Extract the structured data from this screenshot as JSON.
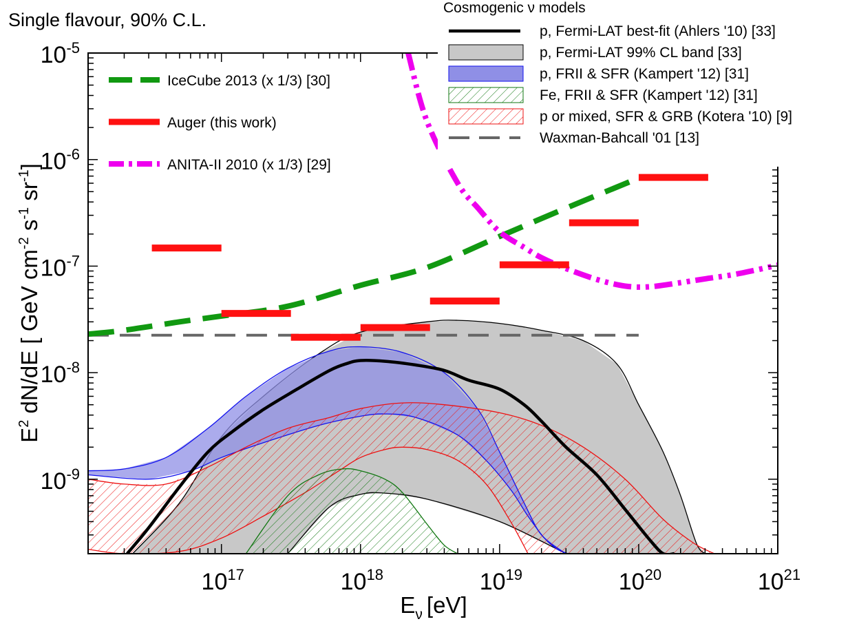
{
  "chart_data": {
    "type": "line",
    "title": "Single flavour, 90% C.L.",
    "xlabel": "E",
    "xlabel_sub": "ν",
    "xlabel_unit": "[eV]",
    "ylabel": "E",
    "ylabel_sup": "2",
    "ylabel_rest": " dN/dE  [ GeV cm",
    "ylabel_sup2": "-2",
    "ylabel_rest2": " s",
    "ylabel_sup3": "-1",
    "ylabel_rest3": " sr",
    "ylabel_sup4": "-1",
    "ylabel_end": "]",
    "x_scale": "log",
    "y_scale": "log",
    "xlim": [
      1.1e+16,
      1e+21
    ],
    "ylim": [
      2e-10,
      1e-05
    ],
    "x_ticks": [
      {
        "value": 1e+17,
        "base": "10",
        "exp": "17"
      },
      {
        "value": 1e+18,
        "base": "10",
        "exp": "18"
      },
      {
        "value": 1e+19,
        "base": "10",
        "exp": "19"
      },
      {
        "value": 1e+20,
        "base": "10",
        "exp": "20"
      },
      {
        "value": 1e+21,
        "base": "10",
        "exp": "21"
      }
    ],
    "y_ticks": [
      {
        "value": 1e-09,
        "base": "10",
        "exp": "-9"
      },
      {
        "value": 1e-08,
        "base": "10",
        "exp": "-8"
      },
      {
        "value": 1e-07,
        "base": "10",
        "exp": "-7"
      },
      {
        "value": 1e-06,
        "base": "10",
        "exp": "-6"
      },
      {
        "value": 1e-05,
        "base": "10",
        "exp": "-5"
      }
    ],
    "legend_left": {
      "placement": "top-left",
      "entries": [
        {
          "label": "IceCube 2013 (x 1/3) [30]",
          "style": "dashed",
          "color": "#119911"
        },
        {
          "label": "Auger (this work)",
          "style": "solid",
          "color": "#ff1111"
        },
        {
          "label": "ANITA-II 2010 (x 1/3) [29]",
          "style": "dashdot",
          "color": "#ee00ee"
        }
      ]
    },
    "legend_right": {
      "placement": "top-right",
      "title": "Cosmogenic  ν models",
      "entries": [
        {
          "label": "p, Fermi-LAT best-fit (Ahlers '10) [33]",
          "style": "line",
          "color": "#000000"
        },
        {
          "label": "p, Fermi-LAT 99% CL band [33]",
          "style": "band",
          "color": "#c8c8c8",
          "edge": "#000000"
        },
        {
          "label": "p, FRII & SFR (Kampert '12) [31]",
          "style": "band",
          "color": "#8f8fe6",
          "edge": "#1111ee"
        },
        {
          "label": "Fe, FRII & SFR (Kampert '12) [31]",
          "style": "hatch",
          "color": "#117711"
        },
        {
          "label": "p or mixed, SFR & GRB (Kotera '10) [9]",
          "style": "hatch",
          "color": "#ee1111"
        },
        {
          "label": "Waxman-Bahcall '01 [13]",
          "style": "dashed",
          "color": "#666666"
        }
      ]
    },
    "series": [
      {
        "kind": "band",
        "color": "#c8c8c8",
        "edge": "#000000",
        "upper": {
          "x": [
            2.3e+16,
            5e+16,
            1e+17,
            2e+17,
            5e+17,
            1e+18,
            3e+18,
            5e+18,
            1e+19,
            2e+19,
            4e+19,
            7e+19,
            1e+20,
            1.5e+20,
            2e+20,
            2.6e+20,
            3e+20
          ],
          "y": [
            2e-10,
            6e-10,
            2.5e-09,
            6e-09,
            1.5e-08,
            2.4e-08,
            3e-08,
            3.1e-08,
            2.9e-08,
            2.5e-08,
            2e-08,
            1.2e-08,
            5e-09,
            1.8e-09,
            7e-10,
            2.5e-10,
            2e-10
          ]
        },
        "lower": {
          "x": [
            3e+17,
            6e+17,
            1e+18,
            1.5e+18,
            3e+18,
            1e+19,
            3e+19
          ],
          "y": [
            2e-10,
            5.5e-10,
            7.2e-10,
            7.4e-10,
            6.5e-10,
            4e-10,
            2e-10
          ]
        }
      },
      {
        "kind": "band",
        "color": "#8f8fe6",
        "edge": "#1111ee",
        "opacity": 0.75,
        "upper": {
          "x": [
            1.1e+16,
            2e+16,
            4e+16,
            8e+16,
            1.5e+17,
            3e+17,
            6e+17,
            1e+18,
            2e+18,
            4e+18,
            7e+18,
            1e+19,
            1.5e+19,
            2e+19,
            3e+19
          ],
          "y": [
            1.2e-09,
            1.25e-09,
            1.6e-09,
            3e-09,
            6e-09,
            1.1e-08,
            1.6e-08,
            1.75e-08,
            1.55e-08,
            1e-08,
            4.5e-09,
            1.8e-09,
            6e-10,
            3e-10,
            2e-10
          ]
        },
        "lower": {
          "x": [
            1.1e+16,
            3e+16,
            6e+16,
            1e+17,
            2e+17,
            5e+17,
            1e+18,
            1.5e+18,
            2.5e+18,
            5e+18,
            8e+18,
            1.2e+19,
            1.6e+19,
            2.1e+19,
            2.6e+19,
            3.1e+19
          ],
          "y": [
            1.1e-09,
            1e-09,
            1.2e-09,
            1.6e-09,
            2.2e-09,
            3.2e-09,
            3.9e-09,
            4.1e-09,
            3.8e-09,
            2.6e-09,
            1.5e-09,
            8e-10,
            4.5e-10,
            2.8e-10,
            2.2e-10,
            2e-10
          ]
        }
      },
      {
        "kind": "hatch",
        "color": "#ee1111",
        "upper": {
          "x": [
            1.1e+16,
            2e+16,
            4e+16,
            8e+16,
            1.5e+17,
            3e+17,
            6e+17,
            1e+18,
            2e+18,
            4e+18,
            1e+19,
            2e+19,
            4e+19,
            8e+19,
            1.5e+20,
            2.5e+20,
            3.5e+20
          ],
          "y": [
            1e-09,
            9e-10,
            9e-10,
            1.3e-09,
            2e-09,
            3e-09,
            3.8e-09,
            4.6e-09,
            5.2e-09,
            5e-09,
            4.2e-09,
            3.2e-09,
            2e-09,
            1e-09,
            4.2e-10,
            2.5e-10,
            2e-10
          ]
        },
        "lower": {
          "x": [
            1.1e+16,
            2e+16,
            5e+16,
            1e+17,
            2e+17,
            4e+17,
            7e+17,
            1e+18,
            1.5e+18,
            2e+18,
            3e+18,
            5e+18,
            8e+18,
            1.2e+19,
            1.6e+19
          ],
          "y": [
            2.2e-10,
            2e-10,
            2.1e-10,
            2.8e-10,
            4.5e-10,
            7.5e-10,
            1.2e-09,
            1.6e-09,
            1.9e-09,
            2e-09,
            1.9e-09,
            1.5e-09,
            9e-10,
            4e-10,
            2e-10
          ]
        }
      },
      {
        "kind": "hatch",
        "color": "#117711",
        "upper": {
          "x": [
            1.5e+17,
            3e+17,
            5e+17,
            7.5e+17,
            1e+18,
            1.5e+18,
            2e+18,
            3e+18,
            4e+18,
            5e+18
          ],
          "y": [
            2e-10,
            7e-10,
            1.1e-09,
            1.25e-09,
            1.2e-09,
            1e-09,
            7.5e-10,
            3.8e-10,
            2.4e-10,
            2e-10
          ]
        },
        "lower": {
          "x": [
            1.5e+17,
            5e+18
          ],
          "y": [
            2e-10,
            2e-10
          ]
        }
      },
      {
        "kind": "line",
        "name": "p, Fermi-LAT best-fit (Ahlers '10) [33]",
        "color": "#000000",
        "width": 4.5,
        "x": [
          2.1e+16,
          3e+16,
          5e+16,
          8e+16,
          1.2e+17,
          2e+17,
          3.5e+17,
          6e+17,
          8e+17,
          1e+18,
          1.5e+18,
          2.5e+18,
          4e+18,
          6e+18,
          1e+19,
          1.5e+19,
          2e+19,
          3e+19,
          5e+19,
          8e+19,
          1.2e+20,
          1.5e+20,
          1.8e+20
        ],
        "y": [
          2e-10,
          3.5e-10,
          8.5e-10,
          1.8e-09,
          2.8e-09,
          4.5e-09,
          7e-09,
          1.05e-08,
          1.22e-08,
          1.3e-08,
          1.28e-08,
          1.18e-08,
          1.05e-08,
          8.5e-09,
          7e-09,
          5e-09,
          3.5e-09,
          2e-09,
          1.1e-09,
          5.2e-10,
          2.7e-10,
          2e-10,
          2e-10
        ]
      },
      {
        "kind": "line",
        "name": "Waxman-Bahcall '01 [13]",
        "color": "#666666",
        "width": 4,
        "dash": "30,16",
        "x": [
          1.1e+16,
          1e+20
        ],
        "y": [
          2.25e-08,
          2.25e-08
        ]
      },
      {
        "kind": "line",
        "name": "IceCube 2013 (x 1/3) [30]",
        "color": "#119911",
        "width": 8,
        "dash": "38,18",
        "x": [
          1.1e+16,
          2e+16,
          5e+16,
          1e+17,
          3e+17,
          1e+18,
          3e+18,
          1e+19,
          3e+19,
          1e+20
        ],
        "y": [
          2.3e-08,
          2.5e-08,
          3e-08,
          3.4e-08,
          4.2e-08,
          6.6e-08,
          9.7e-08,
          1.9e-07,
          3.5e-07,
          6.7e-07
        ]
      },
      {
        "kind": "line",
        "name": "ANITA-II 2010 (x 1/3) [29]",
        "color": "#ee00ee",
        "width": 8,
        "dash": "26,8,5,8,5,8",
        "x": [
          2.2e+18,
          3e+18,
          5e+18,
          7e+18,
          1e+19,
          1.5e+19,
          2e+19,
          3e+19,
          5e+19,
          8e+19,
          1.2e+20,
          2e+20,
          3e+20,
          5e+20,
          1e+21
        ],
        "y": [
          1e-05,
          2.3e-06,
          6e-07,
          3.5e-07,
          2.1e-07,
          1.5e-07,
          1.2e-07,
          9.5e-08,
          7.5e-08,
          6.5e-08,
          6.4e-08,
          7e-08,
          7.6e-08,
          8.4e-08,
          1.02e-07
        ]
      },
      {
        "kind": "segments",
        "name": "Auger (this work)",
        "color": "#ff1111",
        "width": 10,
        "x0": [
          3.16e+16,
          1e+17,
          3.16e+17,
          1e+18,
          3.16e+18,
          1e+19,
          3.16e+19,
          1e+20
        ],
        "x1": [
          1e+17,
          3.16e+17,
          1e+18,
          3.16e+18,
          1e+19,
          3.16e+19,
          1e+20,
          3.16e+20
        ],
        "y": [
          1.48e-07,
          3.6e-08,
          2.15e-08,
          2.65e-08,
          4.7e-08,
          1.03e-07,
          2.55e-07,
          6.8e-07
        ]
      }
    ]
  }
}
